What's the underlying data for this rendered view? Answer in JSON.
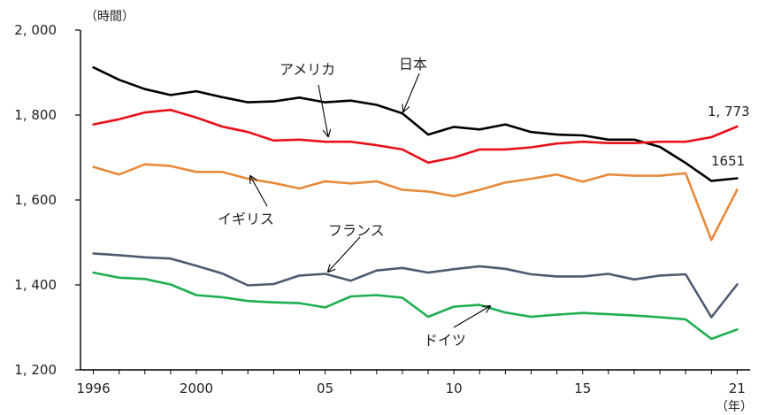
{
  "chart_data": {
    "type": "line",
    "title": "",
    "xlabel": "",
    "ylabel": "",
    "y_unit": "（時間）",
    "x_unit": "（年）",
    "ylim": [
      1200,
      2000
    ],
    "yticks": [
      1200,
      1400,
      1600,
      1800,
      2000
    ],
    "ytick_labels": [
      "1, 200",
      "1, 400",
      "1, 600",
      "1, 800",
      "2, 000"
    ],
    "xlim": [
      1995.5,
      2021.5
    ],
    "xticks": [
      1996,
      2000,
      2005,
      2010,
      2015,
      2021
    ],
    "xtick_labels": [
      "1996",
      "2000",
      "05",
      "10",
      "15",
      "21"
    ],
    "grid": false,
    "legend": "none",
    "x": [
      1996,
      1997,
      1998,
      1999,
      2000,
      2001,
      2002,
      2003,
      2004,
      2005,
      2006,
      2007,
      2008,
      2009,
      2010,
      2011,
      2012,
      2013,
      2014,
      2015,
      2016,
      2017,
      2018,
      2019,
      2020,
      2021
    ],
    "series": [
      {
        "name": "日本",
        "color": "#000000",
        "values": [
          1912,
          1883,
          1861,
          1847,
          1856,
          1842,
          1830,
          1832,
          1841,
          1830,
          1834,
          1824,
          1804,
          1754,
          1772,
          1766,
          1778,
          1760,
          1754,
          1752,
          1742,
          1742,
          1725,
          1687,
          1645,
          1651
        ],
        "value_label": ""
      },
      {
        "name": "アメリカ",
        "color": "#e8111a",
        "values": [
          1778,
          1790,
          1806,
          1812,
          1794,
          1773,
          1760,
          1740,
          1742,
          1737,
          1737,
          1729,
          1719,
          1688,
          1700,
          1719,
          1719,
          1724,
          1733,
          1737,
          1734,
          1734,
          1737,
          1737,
          1748,
          1773
        ],
        "value_label": "1, 773"
      },
      {
        "name": "イギリス",
        "color": "#e8893a",
        "values": [
          1678,
          1660,
          1684,
          1680,
          1666,
          1666,
          1650,
          1640,
          1627,
          1644,
          1639,
          1644,
          1624,
          1620,
          1609,
          1624,
          1641,
          1650,
          1660,
          1643,
          1660,
          1657,
          1657,
          1663,
          1506,
          1624
        ],
        "value_label": ""
      },
      {
        "name": "フランス",
        "color": "#4d5a70",
        "values": [
          1474,
          1470,
          1465,
          1462,
          1445,
          1427,
          1399,
          1402,
          1422,
          1426,
          1410,
          1434,
          1440,
          1429,
          1437,
          1444,
          1438,
          1425,
          1420,
          1420,
          1426,
          1413,
          1422,
          1425,
          1324,
          1401
        ],
        "value_label": ""
      },
      {
        "name": "ドイツ",
        "color": "#1fae50",
        "values": [
          1429,
          1417,
          1414,
          1401,
          1376,
          1371,
          1362,
          1359,
          1357,
          1347,
          1373,
          1376,
          1370,
          1325,
          1349,
          1353,
          1335,
          1325,
          1330,
          1334,
          1331,
          1328,
          1324,
          1319,
          1273,
          1295
        ],
        "value_label": ""
      }
    ],
    "annotations": [
      {
        "text": "アメリカ",
        "series": "アメリカ"
      },
      {
        "text": "日本",
        "series": "日本"
      },
      {
        "text": "イギリス",
        "series": "イギリス"
      },
      {
        "text": "フランス",
        "series": "フランス"
      },
      {
        "text": "ドイツ",
        "series": "ドイツ"
      }
    ]
  }
}
